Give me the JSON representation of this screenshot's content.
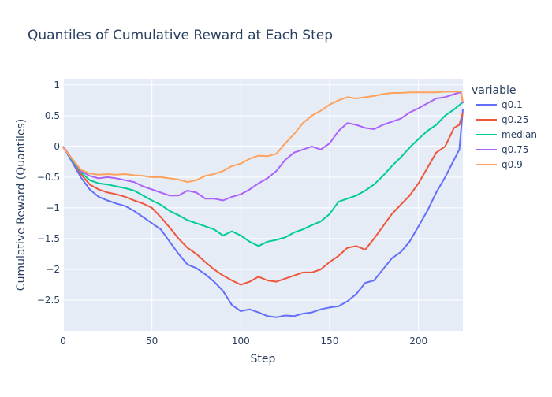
{
  "chart_data": {
    "type": "line",
    "title": "Quantiles of Cumulative Reward at Each Step",
    "xlabel": "Step",
    "ylabel": "Cumulative Reward (Quantiles)",
    "xlim": [
      0,
      225
    ],
    "ylim": [
      -3.0,
      1.1
    ],
    "xticks": [
      0,
      50,
      100,
      150,
      200
    ],
    "yticks": [
      -2.5,
      -2,
      -1.5,
      -1,
      -0.5,
      0,
      0.5,
      1
    ],
    "ytick_labels": [
      "−2.5",
      "−2",
      "−1.5",
      "−1",
      "−0.5",
      "0",
      "0.5",
      "1"
    ],
    "grid": true,
    "legend": {
      "title": "variable",
      "placement": "right"
    },
    "series": [
      {
        "name": "q0.1",
        "color": "#636efa",
        "points": [
          [
            0,
            0
          ],
          [
            5,
            -0.25
          ],
          [
            10,
            -0.5
          ],
          [
            15,
            -0.7
          ],
          [
            20,
            -0.82
          ],
          [
            25,
            -0.88
          ],
          [
            30,
            -0.93
          ],
          [
            35,
            -0.97
          ],
          [
            40,
            -1.05
          ],
          [
            45,
            -1.15
          ],
          [
            50,
            -1.25
          ],
          [
            55,
            -1.35
          ],
          [
            60,
            -1.55
          ],
          [
            65,
            -1.75
          ],
          [
            70,
            -1.92
          ],
          [
            75,
            -1.98
          ],
          [
            80,
            -2.08
          ],
          [
            85,
            -2.2
          ],
          [
            90,
            -2.35
          ],
          [
            95,
            -2.58
          ],
          [
            100,
            -2.68
          ],
          [
            105,
            -2.65
          ],
          [
            110,
            -2.7
          ],
          [
            115,
            -2.76
          ],
          [
            120,
            -2.78
          ],
          [
            125,
            -2.75
          ],
          [
            130,
            -2.76
          ],
          [
            135,
            -2.72
          ],
          [
            140,
            -2.7
          ],
          [
            145,
            -2.65
          ],
          [
            150,
            -2.62
          ],
          [
            155,
            -2.6
          ],
          [
            160,
            -2.52
          ],
          [
            165,
            -2.4
          ],
          [
            170,
            -2.22
          ],
          [
            175,
            -2.18
          ],
          [
            180,
            -2.0
          ],
          [
            185,
            -1.82
          ],
          [
            190,
            -1.72
          ],
          [
            195,
            -1.55
          ],
          [
            200,
            -1.3
          ],
          [
            205,
            -1.05
          ],
          [
            210,
            -0.75
          ],
          [
            215,
            -0.5
          ],
          [
            220,
            -0.22
          ],
          [
            223,
            -0.05
          ],
          [
            225,
            0.6
          ]
        ]
      },
      {
        "name": "q0.25",
        "color": "#ef553b",
        "points": [
          [
            0,
            0
          ],
          [
            5,
            -0.22
          ],
          [
            10,
            -0.45
          ],
          [
            15,
            -0.62
          ],
          [
            20,
            -0.7
          ],
          [
            25,
            -0.75
          ],
          [
            30,
            -0.78
          ],
          [
            35,
            -0.82
          ],
          [
            40,
            -0.88
          ],
          [
            45,
            -0.93
          ],
          [
            50,
            -1.0
          ],
          [
            55,
            -1.15
          ],
          [
            60,
            -1.32
          ],
          [
            65,
            -1.5
          ],
          [
            70,
            -1.65
          ],
          [
            75,
            -1.75
          ],
          [
            80,
            -1.88
          ],
          [
            85,
            -2.0
          ],
          [
            90,
            -2.1
          ],
          [
            95,
            -2.18
          ],
          [
            100,
            -2.25
          ],
          [
            105,
            -2.2
          ],
          [
            110,
            -2.12
          ],
          [
            115,
            -2.18
          ],
          [
            120,
            -2.2
          ],
          [
            125,
            -2.15
          ],
          [
            130,
            -2.1
          ],
          [
            135,
            -2.05
          ],
          [
            140,
            -2.05
          ],
          [
            145,
            -2.0
          ],
          [
            150,
            -1.88
          ],
          [
            155,
            -1.78
          ],
          [
            160,
            -1.65
          ],
          [
            165,
            -1.62
          ],
          [
            170,
            -1.68
          ],
          [
            175,
            -1.5
          ],
          [
            180,
            -1.3
          ],
          [
            185,
            -1.1
          ],
          [
            190,
            -0.95
          ],
          [
            195,
            -0.8
          ],
          [
            200,
            -0.6
          ],
          [
            205,
            -0.35
          ],
          [
            210,
            -0.1
          ],
          [
            215,
            0.0
          ],
          [
            220,
            0.3
          ],
          [
            223,
            0.35
          ],
          [
            225,
            0.55
          ]
        ]
      },
      {
        "name": "median",
        "color": "#00cc96",
        "points": [
          [
            0,
            0
          ],
          [
            5,
            -0.22
          ],
          [
            10,
            -0.42
          ],
          [
            15,
            -0.55
          ],
          [
            20,
            -0.6
          ],
          [
            25,
            -0.62
          ],
          [
            30,
            -0.65
          ],
          [
            35,
            -0.68
          ],
          [
            40,
            -0.72
          ],
          [
            45,
            -0.8
          ],
          [
            50,
            -0.88
          ],
          [
            55,
            -0.95
          ],
          [
            60,
            -1.05
          ],
          [
            65,
            -1.12
          ],
          [
            70,
            -1.2
          ],
          [
            75,
            -1.25
          ],
          [
            80,
            -1.3
          ],
          [
            85,
            -1.35
          ],
          [
            90,
            -1.45
          ],
          [
            95,
            -1.38
          ],
          [
            100,
            -1.45
          ],
          [
            105,
            -1.55
          ],
          [
            110,
            -1.62
          ],
          [
            115,
            -1.55
          ],
          [
            120,
            -1.52
          ],
          [
            125,
            -1.48
          ],
          [
            130,
            -1.4
          ],
          [
            135,
            -1.35
          ],
          [
            140,
            -1.28
          ],
          [
            145,
            -1.22
          ],
          [
            150,
            -1.1
          ],
          [
            155,
            -0.9
          ],
          [
            160,
            -0.85
          ],
          [
            165,
            -0.8
          ],
          [
            170,
            -0.72
          ],
          [
            175,
            -0.62
          ],
          [
            180,
            -0.48
          ],
          [
            185,
            -0.32
          ],
          [
            190,
            -0.18
          ],
          [
            195,
            -0.02
          ],
          [
            200,
            0.12
          ],
          [
            205,
            0.25
          ],
          [
            210,
            0.35
          ],
          [
            215,
            0.5
          ],
          [
            220,
            0.6
          ],
          [
            225,
            0.72
          ]
        ]
      },
      {
        "name": "q0.75",
        "color": "#ab63fa",
        "points": [
          [
            0,
            0
          ],
          [
            5,
            -0.2
          ],
          [
            10,
            -0.4
          ],
          [
            15,
            -0.48
          ],
          [
            20,
            -0.52
          ],
          [
            25,
            -0.5
          ],
          [
            30,
            -0.52
          ],
          [
            35,
            -0.55
          ],
          [
            40,
            -0.58
          ],
          [
            45,
            -0.65
          ],
          [
            50,
            -0.7
          ],
          [
            55,
            -0.75
          ],
          [
            60,
            -0.8
          ],
          [
            65,
            -0.8
          ],
          [
            70,
            -0.72
          ],
          [
            75,
            -0.75
          ],
          [
            80,
            -0.85
          ],
          [
            85,
            -0.85
          ],
          [
            90,
            -0.88
          ],
          [
            95,
            -0.82
          ],
          [
            100,
            -0.78
          ],
          [
            105,
            -0.7
          ],
          [
            110,
            -0.6
          ],
          [
            115,
            -0.52
          ],
          [
            120,
            -0.4
          ],
          [
            125,
            -0.22
          ],
          [
            130,
            -0.1
          ],
          [
            135,
            -0.05
          ],
          [
            140,
            0.0
          ],
          [
            145,
            -0.05
          ],
          [
            150,
            0.05
          ],
          [
            155,
            0.25
          ],
          [
            160,
            0.38
          ],
          [
            165,
            0.35
          ],
          [
            170,
            0.3
          ],
          [
            175,
            0.28
          ],
          [
            180,
            0.35
          ],
          [
            185,
            0.4
          ],
          [
            190,
            0.45
          ],
          [
            195,
            0.55
          ],
          [
            200,
            0.62
          ],
          [
            205,
            0.7
          ],
          [
            210,
            0.78
          ],
          [
            215,
            0.8
          ],
          [
            220,
            0.85
          ],
          [
            224,
            0.88
          ],
          [
            225,
            0.7
          ]
        ]
      },
      {
        "name": "q0.9",
        "color": "#ffa15a",
        "points": [
          [
            0,
            -0.02
          ],
          [
            5,
            -0.2
          ],
          [
            10,
            -0.38
          ],
          [
            15,
            -0.44
          ],
          [
            20,
            -0.46
          ],
          [
            25,
            -0.45
          ],
          [
            30,
            -0.46
          ],
          [
            35,
            -0.45
          ],
          [
            40,
            -0.47
          ],
          [
            45,
            -0.48
          ],
          [
            50,
            -0.5
          ],
          [
            55,
            -0.5
          ],
          [
            60,
            -0.52
          ],
          [
            65,
            -0.54
          ],
          [
            70,
            -0.58
          ],
          [
            75,
            -0.55
          ],
          [
            80,
            -0.48
          ],
          [
            85,
            -0.45
          ],
          [
            90,
            -0.4
          ],
          [
            95,
            -0.32
          ],
          [
            100,
            -0.28
          ],
          [
            105,
            -0.2
          ],
          [
            110,
            -0.15
          ],
          [
            115,
            -0.16
          ],
          [
            120,
            -0.12
          ],
          [
            125,
            0.05
          ],
          [
            130,
            0.2
          ],
          [
            135,
            0.38
          ],
          [
            140,
            0.5
          ],
          [
            145,
            0.58
          ],
          [
            150,
            0.68
          ],
          [
            155,
            0.75
          ],
          [
            160,
            0.8
          ],
          [
            165,
            0.78
          ],
          [
            170,
            0.8
          ],
          [
            175,
            0.82
          ],
          [
            180,
            0.85
          ],
          [
            185,
            0.87
          ],
          [
            190,
            0.87
          ],
          [
            195,
            0.88
          ],
          [
            200,
            0.88
          ],
          [
            205,
            0.88
          ],
          [
            210,
            0.88
          ],
          [
            215,
            0.89
          ],
          [
            220,
            0.89
          ],
          [
            224,
            0.89
          ],
          [
            225,
            0.72
          ]
        ]
      }
    ]
  }
}
